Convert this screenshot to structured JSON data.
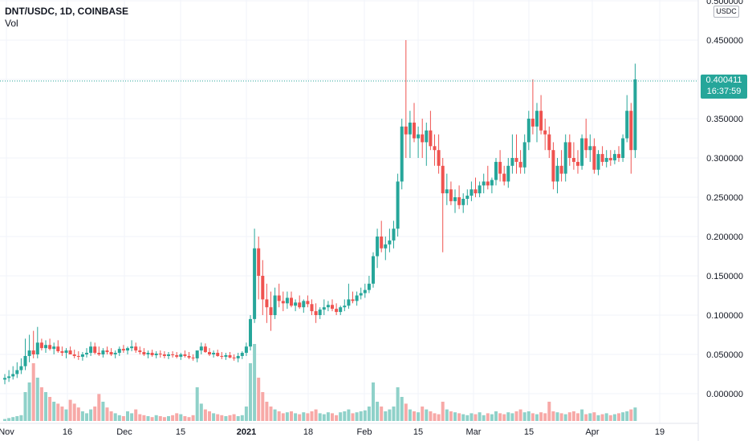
{
  "header": {
    "title": "DNT/USDC, 1D, COINBASE",
    "volume_label": "Vol"
  },
  "price_axis": {
    "unit": "USDC",
    "ticks": [
      "0.500000",
      "0.450000",
      "0.400000",
      "0.350000",
      "0.300000",
      "0.250000",
      "0.200000",
      "0.150000",
      "0.100000",
      "0.050000",
      "0.000000"
    ]
  },
  "current": {
    "price": "0.400411",
    "countdown": "16:37:59"
  },
  "time_axis": {
    "labels": [
      "Nov",
      "16",
      "Dec",
      "15",
      "2021",
      "18",
      "Feb",
      "15",
      "Mar",
      "15",
      "Apr",
      "19"
    ]
  },
  "colors": {
    "up": "#26a69a",
    "down": "#ef5350",
    "up_vol": "#8fd1c9",
    "down_vol": "#f7a9a7",
    "grid": "#f0f3fa",
    "axis_text": "#131722"
  },
  "chart_data": {
    "type": "candlestick",
    "title": "DNT/USDC, 1D, COINBASE",
    "x_range": [
      "2020-11-01",
      "2021-04-20"
    ],
    "y_range": [
      -0.03,
      0.5
    ],
    "grid": true,
    "candles_ohlc": [
      [
        0.018,
        0.025,
        0.012,
        0.02
      ],
      [
        0.02,
        0.03,
        0.015,
        0.022
      ],
      [
        0.022,
        0.035,
        0.018,
        0.025
      ],
      [
        0.025,
        0.04,
        0.02,
        0.03
      ],
      [
        0.03,
        0.045,
        0.025,
        0.035
      ],
      [
        0.035,
        0.07,
        0.03,
        0.048
      ],
      [
        0.048,
        0.075,
        0.04,
        0.055
      ],
      [
        0.055,
        0.08,
        0.045,
        0.05
      ],
      [
        0.05,
        0.085,
        0.045,
        0.065
      ],
      [
        0.065,
        0.07,
        0.055,
        0.058
      ],
      [
        0.058,
        0.068,
        0.052,
        0.062
      ],
      [
        0.062,
        0.07,
        0.055,
        0.057
      ],
      [
        0.057,
        0.065,
        0.05,
        0.06
      ],
      [
        0.06,
        0.068,
        0.052,
        0.054
      ],
      [
        0.054,
        0.06,
        0.048,
        0.052
      ],
      [
        0.052,
        0.058,
        0.045,
        0.055
      ],
      [
        0.055,
        0.06,
        0.05,
        0.05
      ],
      [
        0.05,
        0.056,
        0.045,
        0.048
      ],
      [
        0.048,
        0.054,
        0.043,
        0.047
      ],
      [
        0.047,
        0.053,
        0.042,
        0.05
      ],
      [
        0.05,
        0.058,
        0.046,
        0.052
      ],
      [
        0.052,
        0.066,
        0.048,
        0.06
      ],
      [
        0.06,
        0.065,
        0.05,
        0.052
      ],
      [
        0.052,
        0.06,
        0.048,
        0.05
      ],
      [
        0.05,
        0.058,
        0.046,
        0.055
      ],
      [
        0.055,
        0.06,
        0.05,
        0.053
      ],
      [
        0.053,
        0.058,
        0.048,
        0.05
      ],
      [
        0.05,
        0.055,
        0.045,
        0.052
      ],
      [
        0.052,
        0.06,
        0.048,
        0.057
      ],
      [
        0.057,
        0.062,
        0.052,
        0.055
      ],
      [
        0.055,
        0.06,
        0.05,
        0.058
      ],
      [
        0.058,
        0.068,
        0.054,
        0.06
      ],
      [
        0.06,
        0.065,
        0.052,
        0.055
      ],
      [
        0.055,
        0.06,
        0.05,
        0.053
      ],
      [
        0.053,
        0.058,
        0.048,
        0.05
      ],
      [
        0.05,
        0.055,
        0.045,
        0.052
      ],
      [
        0.052,
        0.056,
        0.047,
        0.049
      ],
      [
        0.049,
        0.054,
        0.045,
        0.051
      ],
      [
        0.051,
        0.055,
        0.046,
        0.05
      ],
      [
        0.05,
        0.054,
        0.045,
        0.048
      ],
      [
        0.048,
        0.053,
        0.044,
        0.05
      ],
      [
        0.05,
        0.054,
        0.046,
        0.049
      ],
      [
        0.049,
        0.053,
        0.045,
        0.047
      ],
      [
        0.047,
        0.052,
        0.043,
        0.05
      ],
      [
        0.05,
        0.055,
        0.046,
        0.048
      ],
      [
        0.048,
        0.053,
        0.044,
        0.046
      ],
      [
        0.046,
        0.05,
        0.042,
        0.045
      ],
      [
        0.045,
        0.05,
        0.04,
        0.055
      ],
      [
        0.055,
        0.065,
        0.05,
        0.06
      ],
      [
        0.06,
        0.064,
        0.052,
        0.053
      ],
      [
        0.053,
        0.058,
        0.048,
        0.05
      ],
      [
        0.05,
        0.055,
        0.046,
        0.052
      ],
      [
        0.052,
        0.056,
        0.047,
        0.048
      ],
      [
        0.048,
        0.053,
        0.044,
        0.047
      ],
      [
        0.047,
        0.052,
        0.043,
        0.049
      ],
      [
        0.049,
        0.053,
        0.045,
        0.046
      ],
      [
        0.046,
        0.05,
        0.042,
        0.045
      ],
      [
        0.045,
        0.052,
        0.04,
        0.048
      ],
      [
        0.048,
        0.054,
        0.044,
        0.052
      ],
      [
        0.052,
        0.065,
        0.048,
        0.06
      ],
      [
        0.06,
        0.1,
        0.055,
        0.095
      ],
      [
        0.095,
        0.21,
        0.09,
        0.185
      ],
      [
        0.185,
        0.2,
        0.12,
        0.15
      ],
      [
        0.15,
        0.17,
        0.1,
        0.12
      ],
      [
        0.12,
        0.14,
        0.09,
        0.11
      ],
      [
        0.11,
        0.13,
        0.08,
        0.1
      ],
      [
        0.1,
        0.135,
        0.095,
        0.125
      ],
      [
        0.125,
        0.14,
        0.11,
        0.118
      ],
      [
        0.118,
        0.13,
        0.105,
        0.115
      ],
      [
        0.115,
        0.13,
        0.108,
        0.122
      ],
      [
        0.122,
        0.13,
        0.11,
        0.112
      ],
      [
        0.112,
        0.12,
        0.105,
        0.116
      ],
      [
        0.116,
        0.125,
        0.108,
        0.11
      ],
      [
        0.11,
        0.12,
        0.103,
        0.118
      ],
      [
        0.118,
        0.125,
        0.11,
        0.114
      ],
      [
        0.114,
        0.12,
        0.1,
        0.105
      ],
      [
        0.105,
        0.115,
        0.09,
        0.1
      ],
      [
        0.1,
        0.11,
        0.095,
        0.107
      ],
      [
        0.107,
        0.12,
        0.1,
        0.11
      ],
      [
        0.11,
        0.118,
        0.105,
        0.113
      ],
      [
        0.113,
        0.12,
        0.105,
        0.108
      ],
      [
        0.108,
        0.115,
        0.1,
        0.104
      ],
      [
        0.104,
        0.112,
        0.1,
        0.11
      ],
      [
        0.11,
        0.12,
        0.105,
        0.112
      ],
      [
        0.112,
        0.14,
        0.108,
        0.12
      ],
      [
        0.12,
        0.13,
        0.115,
        0.118
      ],
      [
        0.118,
        0.13,
        0.112,
        0.125
      ],
      [
        0.125,
        0.135,
        0.12,
        0.128
      ],
      [
        0.128,
        0.14,
        0.122,
        0.132
      ],
      [
        0.132,
        0.15,
        0.128,
        0.14
      ],
      [
        0.14,
        0.18,
        0.135,
        0.175
      ],
      [
        0.175,
        0.21,
        0.16,
        0.2
      ],
      [
        0.2,
        0.22,
        0.18,
        0.185
      ],
      [
        0.185,
        0.2,
        0.17,
        0.19
      ],
      [
        0.19,
        0.21,
        0.18,
        0.195
      ],
      [
        0.195,
        0.22,
        0.185,
        0.21
      ],
      [
        0.21,
        0.28,
        0.2,
        0.27
      ],
      [
        0.27,
        0.35,
        0.26,
        0.34
      ],
      [
        0.34,
        0.45,
        0.3,
        0.33
      ],
      [
        0.33,
        0.36,
        0.3,
        0.345
      ],
      [
        0.345,
        0.37,
        0.32,
        0.325
      ],
      [
        0.325,
        0.34,
        0.3,
        0.33
      ],
      [
        0.33,
        0.35,
        0.3,
        0.32
      ],
      [
        0.32,
        0.345,
        0.29,
        0.335
      ],
      [
        0.335,
        0.36,
        0.31,
        0.315
      ],
      [
        0.315,
        0.33,
        0.29,
        0.31
      ],
      [
        0.31,
        0.33,
        0.28,
        0.29
      ],
      [
        0.29,
        0.3,
        0.18,
        0.255
      ],
      [
        0.255,
        0.28,
        0.24,
        0.26
      ],
      [
        0.26,
        0.27,
        0.24,
        0.245
      ],
      [
        0.245,
        0.26,
        0.23,
        0.25
      ],
      [
        0.25,
        0.265,
        0.235,
        0.24
      ],
      [
        0.24,
        0.255,
        0.23,
        0.248
      ],
      [
        0.248,
        0.26,
        0.24,
        0.252
      ],
      [
        0.252,
        0.27,
        0.245,
        0.26
      ],
      [
        0.26,
        0.275,
        0.25,
        0.255
      ],
      [
        0.255,
        0.27,
        0.25,
        0.265
      ],
      [
        0.265,
        0.28,
        0.255,
        0.27
      ],
      [
        0.27,
        0.29,
        0.26,
        0.265
      ],
      [
        0.265,
        0.275,
        0.255,
        0.272
      ],
      [
        0.272,
        0.3,
        0.265,
        0.295
      ],
      [
        0.295,
        0.31,
        0.27,
        0.28
      ],
      [
        0.28,
        0.29,
        0.265,
        0.27
      ],
      [
        0.27,
        0.3,
        0.262,
        0.29
      ],
      [
        0.29,
        0.33,
        0.28,
        0.3
      ],
      [
        0.3,
        0.33,
        0.28,
        0.295
      ],
      [
        0.295,
        0.31,
        0.28,
        0.288
      ],
      [
        0.288,
        0.33,
        0.28,
        0.32
      ],
      [
        0.32,
        0.36,
        0.31,
        0.35
      ],
      [
        0.35,
        0.4,
        0.33,
        0.34
      ],
      [
        0.34,
        0.37,
        0.32,
        0.36
      ],
      [
        0.36,
        0.38,
        0.33,
        0.335
      ],
      [
        0.335,
        0.35,
        0.31,
        0.33
      ],
      [
        0.33,
        0.34,
        0.3,
        0.31
      ],
      [
        0.31,
        0.32,
        0.26,
        0.27
      ],
      [
        0.27,
        0.3,
        0.255,
        0.29
      ],
      [
        0.29,
        0.31,
        0.27,
        0.28
      ],
      [
        0.28,
        0.33,
        0.27,
        0.32
      ],
      [
        0.32,
        0.33,
        0.29,
        0.3
      ],
      [
        0.3,
        0.32,
        0.285,
        0.295
      ],
      [
        0.295,
        0.31,
        0.28,
        0.29
      ],
      [
        0.29,
        0.33,
        0.285,
        0.325
      ],
      [
        0.325,
        0.35,
        0.3,
        0.31
      ],
      [
        0.31,
        0.33,
        0.295,
        0.315
      ],
      [
        0.315,
        0.325,
        0.28,
        0.285
      ],
      [
        0.285,
        0.31,
        0.278,
        0.305
      ],
      [
        0.305,
        0.315,
        0.29,
        0.295
      ],
      [
        0.295,
        0.31,
        0.288,
        0.3
      ],
      [
        0.3,
        0.31,
        0.29,
        0.297
      ],
      [
        0.297,
        0.31,
        0.292,
        0.305
      ],
      [
        0.305,
        0.315,
        0.295,
        0.3
      ],
      [
        0.3,
        0.33,
        0.295,
        0.325
      ],
      [
        0.325,
        0.38,
        0.32,
        0.36
      ],
      [
        0.36,
        0.37,
        0.28,
        0.31
      ],
      [
        0.31,
        0.42,
        0.3,
        0.4
      ]
    ],
    "volume": [
      2,
      3,
      4,
      5,
      6,
      30,
      40,
      60,
      45,
      35,
      30,
      25,
      20,
      18,
      15,
      12,
      22,
      18,
      14,
      10,
      8,
      12,
      15,
      28,
      20,
      14,
      10,
      8,
      6,
      5,
      10,
      8,
      12,
      7,
      6,
      5,
      4,
      6,
      5,
      4,
      5,
      6,
      8,
      7,
      5,
      4,
      6,
      35,
      18,
      12,
      10,
      8,
      7,
      6,
      5,
      6,
      7,
      5,
      6,
      15,
      60,
      80,
      45,
      30,
      20,
      15,
      12,
      10,
      8,
      9,
      10,
      8,
      7,
      9,
      8,
      10,
      12,
      8,
      7,
      9,
      8,
      6,
      9,
      10,
      12,
      8,
      9,
      10,
      11,
      15,
      40,
      20,
      15,
      10,
      12,
      15,
      35,
      25,
      18,
      12,
      10,
      9,
      15,
      12,
      10,
      8,
      7,
      20,
      12,
      10,
      9,
      8,
      7,
      6,
      8,
      7,
      9,
      6,
      8,
      7,
      10,
      8,
      7,
      9,
      8,
      10,
      12,
      9,
      10,
      8,
      7,
      9,
      8,
      20,
      10,
      9,
      8,
      7,
      9,
      10,
      8,
      12,
      7,
      8,
      9,
      6,
      7,
      8,
      6,
      7,
      8,
      9,
      10,
      12,
      14,
      12
    ]
  }
}
